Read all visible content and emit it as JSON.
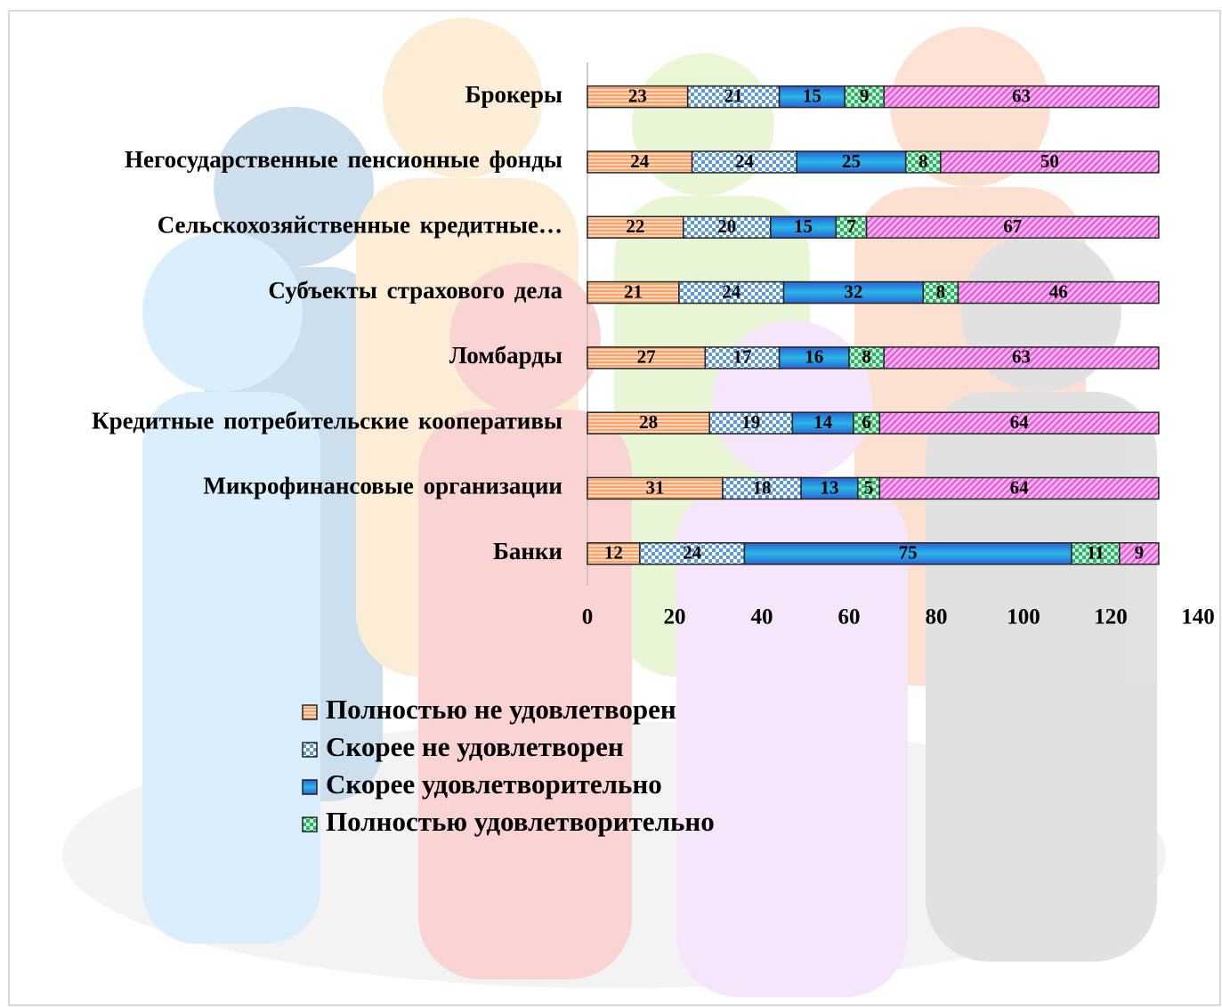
{
  "chart_data": {
    "type": "stacked-bar-horizontal",
    "categories": [
      "Брокеры",
      "Негосударственные пенсионные фонды",
      "Сельскохозяйственные кредитные…",
      "Субъекты страхового дела",
      "Ломбарды",
      "Кредитные потребительские кооперативы",
      "Микрофинансовые организации",
      "Банки"
    ],
    "series": [
      {
        "name": "Полностью не удовлетворен",
        "color": "#f4a46c",
        "values": [
          23,
          24,
          22,
          21,
          27,
          28,
          31,
          12
        ]
      },
      {
        "name": "Скорее не удовлетворен",
        "color": "#5b9bd5",
        "values": [
          21,
          24,
          20,
          24,
          17,
          19,
          18,
          24
        ]
      },
      {
        "name": "Скорее удовлетворительно",
        "color": "#2a62d6",
        "values": [
          15,
          25,
          15,
          32,
          16,
          14,
          13,
          75
        ]
      },
      {
        "name": "Полностью удовлетворительно",
        "color": "#2db36a",
        "values": [
          9,
          8,
          7,
          8,
          8,
          6,
          5,
          11
        ]
      },
      {
        "color": "#e455d6",
        "values": [
          63,
          50,
          67,
          46,
          63,
          64,
          64,
          9
        ]
      }
    ],
    "xlim": [
      0,
      140
    ],
    "xticks": [
      0,
      20,
      40,
      60,
      80,
      100,
      120,
      140
    ],
    "grid": false
  }
}
